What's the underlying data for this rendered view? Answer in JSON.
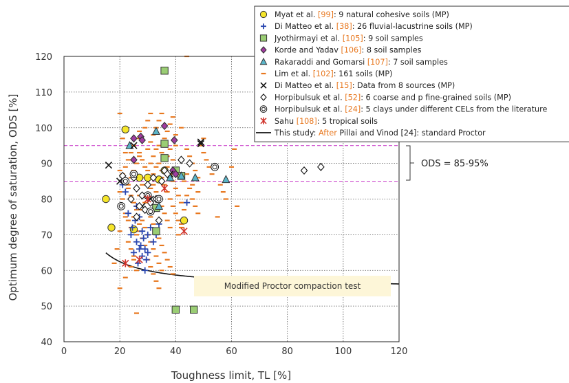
{
  "chart_data": {
    "type": "scatter",
    "xlabel": "Toughness limit, TL [%]",
    "ylabel": "Optimum degree of saturation, ODS [%]",
    "xlim": [
      0,
      120
    ],
    "ylim": [
      40,
      120
    ],
    "xticks": [
      "0",
      "20",
      "40",
      "60",
      "80",
      "100",
      "120"
    ],
    "yticks": [
      "40",
      "50",
      "60",
      "70",
      "80",
      "90",
      "100",
      "110",
      "120"
    ],
    "grid": "dotted",
    "legend_position": "top-right",
    "annotation_box": "Modified Proctor compaction test",
    "ods_band": {
      "label": "ODS = 85-95%",
      "lower": 85,
      "upper": 95,
      "color": "#cc44cc"
    },
    "series": [
      {
        "marker": "circle-yellow",
        "color": "#f5e52a",
        "stroke": "#333333",
        "legend_pre": "Myat et al. ",
        "legend_ref": "[99]",
        "legend_post": ": 9 natural cohesive soils (MP)",
        "points": [
          [
            22,
            99.5
          ],
          [
            15,
            80
          ],
          [
            17,
            72
          ],
          [
            25,
            71.5
          ],
          [
            30,
            86
          ],
          [
            34,
            85.5
          ],
          [
            36,
            88
          ],
          [
            43,
            74
          ],
          [
            27,
            86
          ]
        ]
      },
      {
        "marker": "plus",
        "color": "#2a47b0",
        "legend_pre": "Di Matteo et al. ",
        "legend_ref": "[38]",
        "legend_post": ": 26 fluvial-lacustrine soils (MP)",
        "points": [
          [
            21,
            84
          ],
          [
            22,
            82
          ],
          [
            23,
            76
          ],
          [
            24,
            70
          ],
          [
            25,
            65
          ],
          [
            26,
            68
          ],
          [
            26.5,
            62
          ],
          [
            27,
            66
          ],
          [
            27.5,
            67
          ],
          [
            28,
            64
          ],
          [
            28.5,
            69
          ],
          [
            29,
            60
          ],
          [
            29.5,
            63
          ],
          [
            30,
            65
          ],
          [
            24.5,
            72
          ],
          [
            25.5,
            74
          ],
          [
            26,
            78
          ],
          [
            27,
            75
          ],
          [
            28,
            71
          ],
          [
            29,
            66
          ],
          [
            30,
            70
          ],
          [
            31,
            72
          ],
          [
            32,
            68
          ],
          [
            33,
            70
          ],
          [
            34,
            73
          ],
          [
            44,
            79
          ]
        ]
      },
      {
        "marker": "square-green",
        "color": "#9acd74",
        "stroke": "#333333",
        "legend_pre": "Jyothirmayi et al. ",
        "legend_ref": "[105]",
        "legend_post": ": 9 soil samples",
        "points": [
          [
            36,
            116
          ],
          [
            36,
            95.5
          ],
          [
            36,
            91.5
          ],
          [
            40,
            88
          ],
          [
            40,
            49
          ],
          [
            46.5,
            49
          ],
          [
            33,
            77.5
          ],
          [
            42,
            86.5
          ],
          [
            33,
            71
          ]
        ]
      },
      {
        "marker": "diamond-purple",
        "color": "#a03ca0",
        "stroke": "#333333",
        "legend_pre": "Korde and Yadav ",
        "legend_ref": "[106]",
        "legend_post": ": 8 soil samples",
        "points": [
          [
            25,
            97
          ],
          [
            25,
            91
          ],
          [
            27.5,
            97.5
          ],
          [
            28,
            96.5
          ],
          [
            36,
            100.5
          ],
          [
            39.5,
            96.5
          ],
          [
            39,
            88
          ],
          [
            40,
            87
          ]
        ]
      },
      {
        "marker": "triangle-cyan",
        "color": "#5ab4c8",
        "stroke": "#333333",
        "legend_pre": "Rakaraddi and Gomarsi ",
        "legend_ref": "[107]",
        "legend_post": ": 7 soil samples",
        "points": [
          [
            33,
            99
          ],
          [
            38,
            86
          ],
          [
            42,
            86.5
          ],
          [
            47,
            86
          ],
          [
            58,
            85.5
          ],
          [
            23.5,
            95
          ],
          [
            34,
            78
          ]
        ]
      },
      {
        "marker": "dash-orange",
        "color": "#e8771e",
        "legend_pre": "Lim et al. ",
        "legend_ref": "[102]",
        "legend_post": ": 161 soils (MP)",
        "points": [
          [
            20,
            104
          ],
          [
            21,
            97
          ],
          [
            22,
            93
          ],
          [
            20,
            88
          ],
          [
            23,
            84
          ],
          [
            21,
            80
          ],
          [
            22,
            75
          ],
          [
            20,
            71
          ],
          [
            19,
            66
          ],
          [
            18,
            62
          ],
          [
            20,
            55
          ],
          [
            22,
            58
          ],
          [
            24,
            61
          ],
          [
            25,
            63
          ],
          [
            26,
            60
          ],
          [
            23,
            68
          ],
          [
            24,
            72
          ],
          [
            25,
            75
          ],
          [
            26,
            78
          ],
          [
            27,
            81
          ],
          [
            28,
            84
          ],
          [
            29,
            86
          ],
          [
            30,
            88
          ],
          [
            31,
            90
          ],
          [
            32,
            92
          ],
          [
            33,
            94
          ],
          [
            34,
            95
          ],
          [
            35,
            93
          ],
          [
            36,
            91
          ],
          [
            37,
            89
          ],
          [
            38,
            87
          ],
          [
            39,
            85
          ],
          [
            40,
            83
          ],
          [
            41,
            81
          ],
          [
            42,
            79
          ],
          [
            30,
            77
          ],
          [
            31,
            75
          ],
          [
            32,
            73
          ],
          [
            33,
            71
          ],
          [
            34,
            69
          ],
          [
            35,
            67
          ],
          [
            36,
            65
          ],
          [
            37,
            63
          ],
          [
            38,
            61
          ],
          [
            39,
            59
          ],
          [
            28,
            74
          ],
          [
            29,
            72
          ],
          [
            30,
            70
          ],
          [
            31,
            68
          ],
          [
            32,
            66
          ],
          [
            33,
            64
          ],
          [
            34,
            62
          ],
          [
            35,
            60
          ],
          [
            26,
            48
          ],
          [
            44,
            94
          ],
          [
            45,
            92
          ],
          [
            46,
            90
          ],
          [
            47,
            88
          ],
          [
            48,
            86
          ],
          [
            49,
            95
          ],
          [
            50,
            93
          ],
          [
            51,
            91
          ],
          [
            52,
            89
          ],
          [
            53,
            87
          ],
          [
            55,
            75
          ],
          [
            56,
            84
          ],
          [
            57,
            82
          ],
          [
            58,
            80
          ],
          [
            60,
            89
          ],
          [
            61,
            94
          ],
          [
            62,
            78
          ],
          [
            48,
            82
          ],
          [
            46,
            84
          ],
          [
            44,
            81
          ],
          [
            43,
            77
          ],
          [
            42,
            73
          ],
          [
            41,
            70
          ],
          [
            27,
            93
          ],
          [
            28,
            91
          ],
          [
            29,
            89
          ],
          [
            30,
            94
          ],
          [
            31,
            96
          ],
          [
            32,
            98
          ],
          [
            33,
            100
          ],
          [
            34,
            102
          ],
          [
            35,
            104
          ],
          [
            36,
            97
          ],
          [
            37,
            99
          ],
          [
            38,
            101
          ],
          [
            39,
            103
          ],
          [
            40,
            95
          ],
          [
            29,
            100
          ],
          [
            30,
            102
          ],
          [
            31,
            104
          ],
          [
            32,
            84
          ],
          [
            33,
            82
          ],
          [
            34,
            80
          ],
          [
            35,
            78
          ],
          [
            36,
            76
          ],
          [
            37,
            74
          ],
          [
            38,
            72
          ],
          [
            24,
            86
          ],
          [
            25,
            88
          ],
          [
            26,
            90
          ],
          [
            27,
            92
          ],
          [
            22,
            89
          ],
          [
            23,
            91
          ],
          [
            24,
            93
          ],
          [
            25,
            95
          ],
          [
            26,
            97
          ],
          [
            27,
            99
          ],
          [
            21,
            87
          ],
          [
            22,
            85
          ],
          [
            23,
            83
          ],
          [
            24,
            81
          ],
          [
            25,
            79
          ],
          [
            26,
            77
          ],
          [
            27,
            73
          ],
          [
            28,
            69
          ],
          [
            29,
            67
          ],
          [
            30,
            63
          ],
          [
            31,
            61
          ],
          [
            32,
            59
          ],
          [
            33,
            57
          ],
          [
            34,
            55
          ],
          [
            20,
            82
          ],
          [
            21,
            78
          ],
          [
            22,
            76
          ],
          [
            23,
            74
          ],
          [
            24,
            66
          ],
          [
            25,
            64
          ],
          [
            26,
            70
          ],
          [
            27,
            71
          ],
          [
            28,
            77
          ],
          [
            29,
            79
          ],
          [
            30,
            81
          ],
          [
            31,
            83
          ],
          [
            32,
            87
          ],
          [
            33,
            89
          ],
          [
            34,
            90
          ],
          [
            35,
            86
          ],
          [
            36,
            84
          ],
          [
            37,
            82
          ],
          [
            38,
            80
          ],
          [
            39,
            78
          ],
          [
            40,
            76
          ],
          [
            41,
            74
          ],
          [
            42,
            72
          ],
          [
            43,
            85
          ],
          [
            44,
            87
          ],
          [
            45,
            83
          ],
          [
            46,
            80
          ],
          [
            47,
            78
          ],
          [
            48,
            76
          ],
          [
            50,
            97
          ],
          [
            44,
            120
          ],
          [
            39,
            91
          ],
          [
            37,
            92
          ],
          [
            35,
            88
          ],
          [
            38,
            94
          ],
          [
            40,
            98
          ],
          [
            42,
            100
          ]
        ]
      },
      {
        "marker": "x-black",
        "color": "#111111",
        "legend_pre": "Di Matteo et al. ",
        "legend_ref": "[15]",
        "legend_post": ": Data from 8 sources (MP)",
        "points": [
          [
            16,
            89.5
          ],
          [
            20,
            85
          ],
          [
            25,
            95
          ],
          [
            28,
            78
          ],
          [
            31,
            80
          ],
          [
            38,
            87
          ],
          [
            49,
            95.5
          ],
          [
            49,
            96
          ]
        ]
      },
      {
        "marker": "diamond-open",
        "color": "#ffffff",
        "stroke": "#111111",
        "legend_pre": "Horpibulsuk et al. ",
        "legend_ref": "[52]",
        "legend_post": ": 6 coarse and p fine-grained soils (MP)",
        "points": [
          [
            21,
            86.5
          ],
          [
            24,
            80
          ],
          [
            25,
            86
          ],
          [
            26,
            83
          ],
          [
            26,
            75
          ],
          [
            27,
            78
          ],
          [
            28,
            81
          ],
          [
            29,
            77
          ],
          [
            30,
            84
          ],
          [
            31,
            79
          ],
          [
            32,
            86
          ],
          [
            33,
            80
          ],
          [
            34,
            74
          ],
          [
            35,
            85
          ],
          [
            36,
            88
          ],
          [
            37,
            87
          ],
          [
            42,
            91
          ],
          [
            45,
            90
          ],
          [
            86,
            88
          ],
          [
            92,
            89
          ]
        ]
      },
      {
        "marker": "double-circle",
        "color": "#ffffff",
        "stroke": "#111111",
        "legend_pre": "Horpibulsuk et al. ",
        "legend_ref": "[24]",
        "legend_post": ": 5 clays under different CELs from the literature",
        "points": [
          [
            20.5,
            78
          ],
          [
            22,
            85
          ],
          [
            25,
            87
          ],
          [
            30,
            81
          ],
          [
            31,
            76.5
          ],
          [
            34,
            80
          ],
          [
            54,
            89
          ]
        ]
      },
      {
        "marker": "asterisk-red",
        "color": "#d0322a",
        "legend_pre": "Sahu ",
        "legend_ref": "[108]",
        "legend_post": ": 5 tropical soils",
        "points": [
          [
            22,
            62
          ],
          [
            27,
            63
          ],
          [
            30,
            80
          ],
          [
            36,
            83
          ],
          [
            43,
            71
          ]
        ]
      },
      {
        "marker": "line",
        "color": "#111111",
        "legend_pre": "This study:  ",
        "legend_ref": "After",
        "legend_post": " Pillai and Vinod  [24]: standard Proctor",
        "curve_a": 54.97,
        "curve_b": 149.5,
        "curve_x": [
          15,
          120
        ]
      }
    ]
  }
}
